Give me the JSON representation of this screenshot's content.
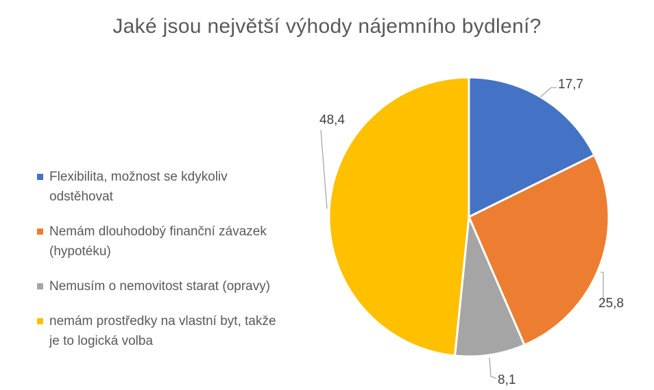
{
  "chart_data": {
    "type": "pie",
    "title": "Jaké jsou největší výhody nájemního bydlení?",
    "legend_position": "left",
    "slices": [
      {
        "label": "Flexibilita, možnost se kdykoliv odstěhovat",
        "value": 17.7,
        "value_label": "17,7",
        "color": "#4472C4"
      },
      {
        "label": "Nemám dlouhodobý finanční závazek (hypotéku)",
        "value": 25.8,
        "value_label": "25,8",
        "color": "#ED7D31"
      },
      {
        "label": "Nemusím o nemovitost starat (opravy)",
        "value": 8.1,
        "value_label": "8,1",
        "color": "#A5A5A5"
      },
      {
        "label": "nemám prostředky na vlastní byt, takže je to logická volba",
        "value": 48.4,
        "value_label": "48,4",
        "color": "#FFC000"
      }
    ]
  }
}
